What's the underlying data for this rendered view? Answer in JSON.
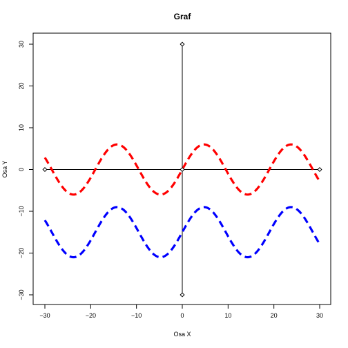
{
  "chart_data": {
    "type": "line",
    "title": "Graf",
    "xlabel": "Osa X",
    "ylabel": "Osa Y",
    "xlim": [
      -30,
      30
    ],
    "ylim": [
      -30,
      30
    ],
    "xticks": [
      -30,
      -20,
      -10,
      0,
      10,
      20,
      30
    ],
    "yticks": [
      -30,
      -20,
      -10,
      0,
      10,
      20,
      30
    ],
    "grid": false,
    "colors": {
      "series_red": "#ff0000",
      "series_blue": "#0000ff",
      "axes": "#000000"
    },
    "series": [
      {
        "color": "#ff0000",
        "style": "dashed",
        "amplitude": 6,
        "offset": 0,
        "period": 19,
        "phase_shift_x": 0,
        "x_range": [
          -30,
          30
        ]
      },
      {
        "color": "#0000ff",
        "style": "dashed",
        "amplitude": 6,
        "offset": -15,
        "period": 19,
        "phase_shift_x": 0,
        "x_range": [
          -30,
          30
        ]
      }
    ],
    "reference_lines": [
      {
        "orientation": "horizontal",
        "value": 0,
        "from": -30,
        "to": 30
      },
      {
        "orientation": "vertical",
        "value": 0,
        "from": -30,
        "to": 30
      }
    ],
    "marker_points": [
      {
        "x": -30,
        "y": 0
      },
      {
        "x": 30,
        "y": 0
      },
      {
        "x": 0,
        "y": 30
      },
      {
        "x": 0,
        "y": -30
      },
      {
        "x": 0,
        "y": 0
      }
    ]
  }
}
